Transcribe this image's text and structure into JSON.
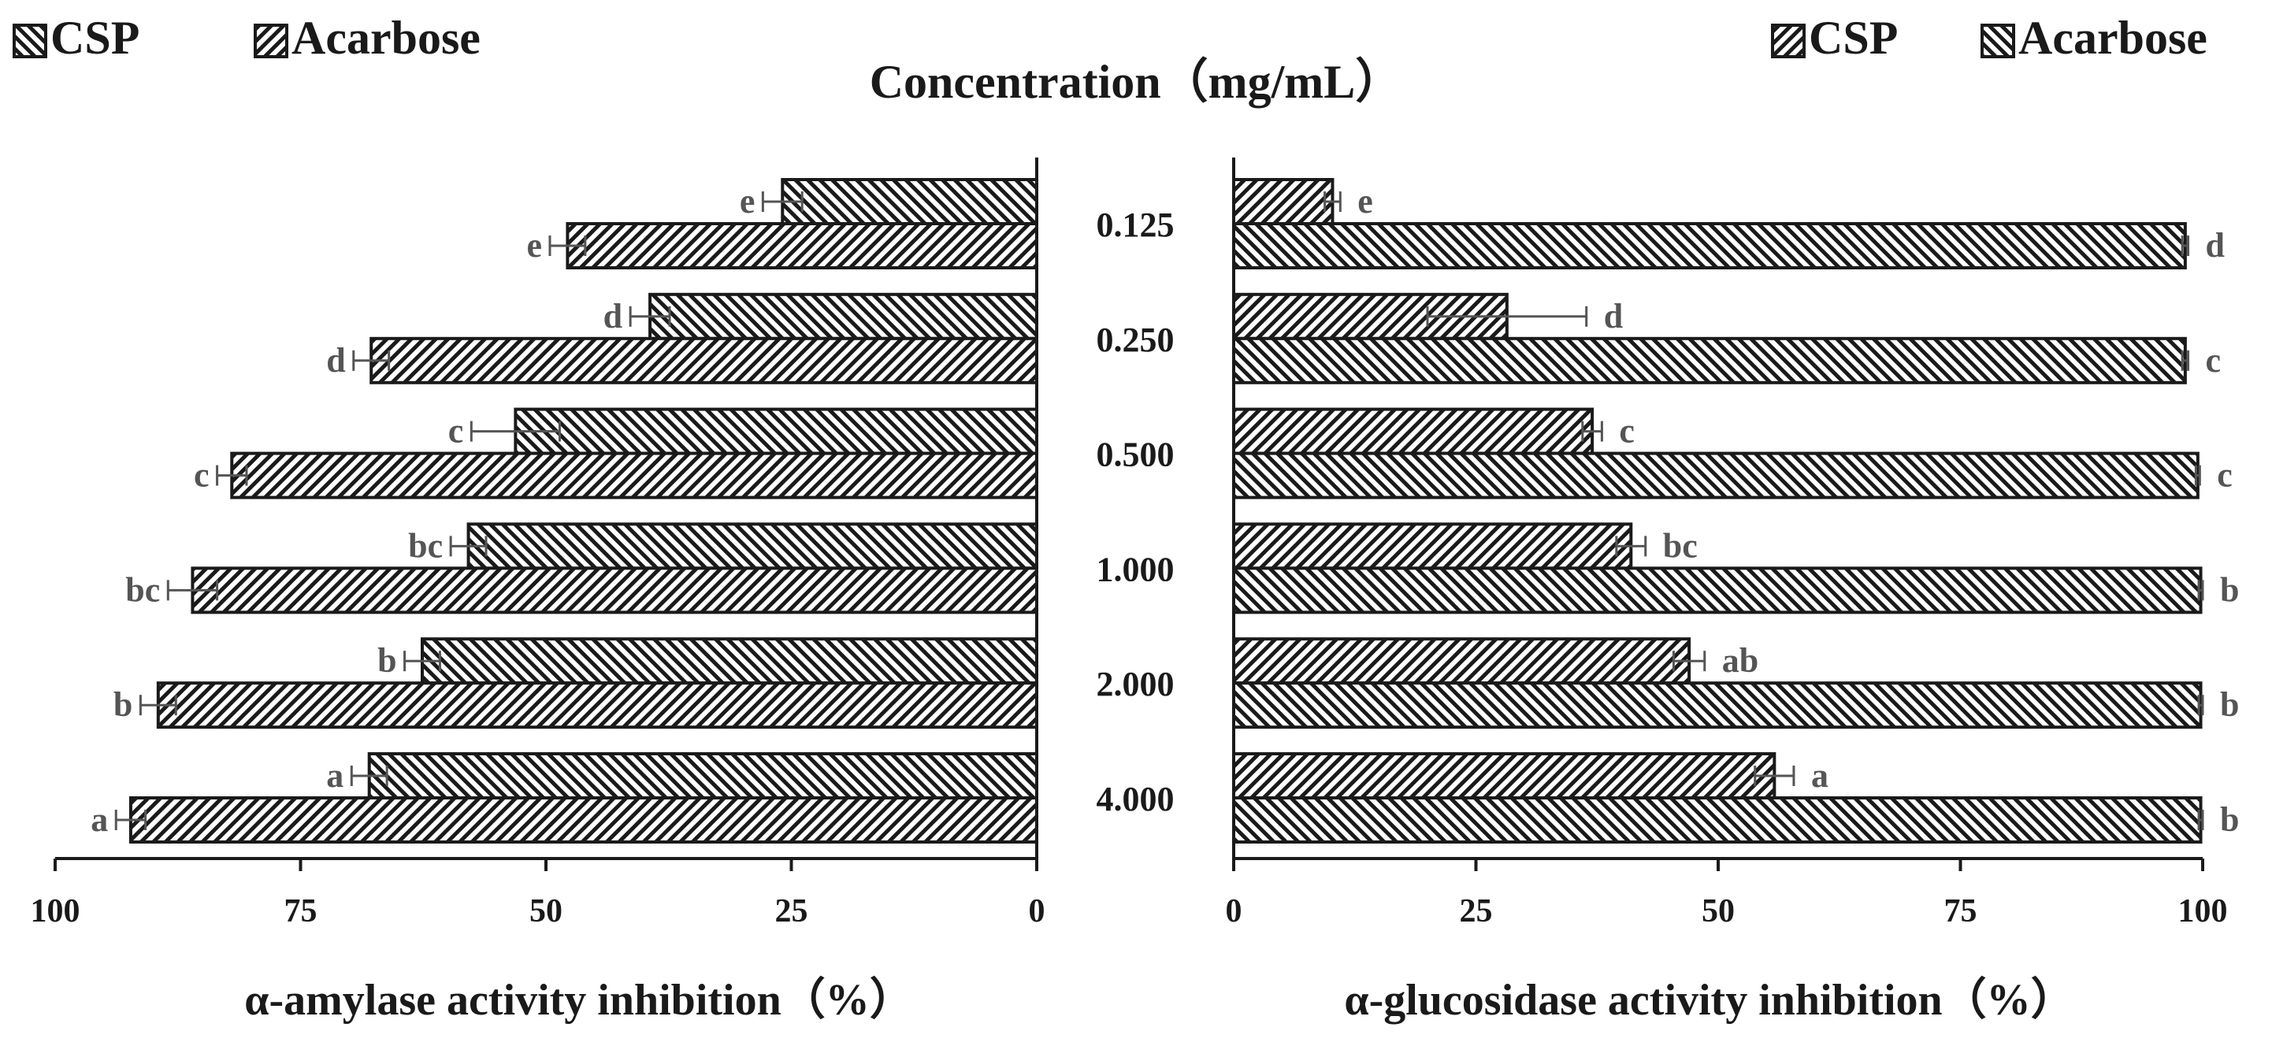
{
  "chart_data": {
    "type": "bar",
    "title": "Concentration（mg/mL）",
    "categories": [
      "0.125",
      "0.250",
      "0.500",
      "1.000",
      "2.000",
      "4.000"
    ],
    "ticks": [
      "0",
      "25",
      "50",
      "75",
      "100"
    ],
    "panels": [
      {
        "name": "alpha-amylase",
        "xlabel": "α-amylase activity inhibition（%）",
        "xlim": [
          0,
          100
        ],
        "reversed": true,
        "legend": [
          {
            "name": "CSP",
            "pattern": "backslash"
          },
          {
            "name": "Acarbose",
            "pattern": "slash"
          }
        ],
        "series": [
          {
            "name": "CSP",
            "pattern": "backslash",
            "values": [
              25.9,
              39.4,
              53.1,
              57.9,
              62.6,
              68.0
            ],
            "errors": [
              2.0,
              2.0,
              4.5,
              1.8,
              1.8,
              1.8
            ],
            "letters": [
              "e",
              "d",
              "c",
              "bc",
              "b",
              "a"
            ]
          },
          {
            "name": "Acarbose",
            "pattern": "slash",
            "values": [
              47.8,
              67.8,
              82.0,
              86.0,
              89.5,
              92.3
            ],
            "errors": [
              1.8,
              1.8,
              1.5,
              2.5,
              1.8,
              1.5
            ],
            "letters": [
              "e",
              "d",
              "c",
              "bc",
              "b",
              "a"
            ]
          }
        ]
      },
      {
        "name": "alpha-glucosidase",
        "xlabel": "α-glucosidase activity inhibition（%）",
        "xlim": [
          0,
          100
        ],
        "reversed": false,
        "legend": [
          {
            "name": "CSP",
            "pattern": "slash"
          },
          {
            "name": "Acarbose",
            "pattern": "backslash"
          }
        ],
        "series": [
          {
            "name": "CSP",
            "pattern": "slash",
            "values": [
              10.2,
              28.2,
              37.0,
              41.0,
              47.0,
              55.8
            ],
            "errors": [
              0.8,
              8.2,
              1.0,
              1.5,
              1.6,
              2.0
            ],
            "letters": [
              "e",
              "d",
              "c",
              "bc",
              "ab",
              "a"
            ]
          },
          {
            "name": "Acarbose",
            "pattern": "backslash",
            "values": [
              98.2,
              98.2,
              99.5,
              99.8,
              99.8,
              99.8
            ],
            "errors": [
              0.3,
              0.3,
              0.2,
              0.2,
              0.2,
              0.2
            ],
            "letters": [
              "d",
              "c",
              "c",
              "b",
              "b",
              "b"
            ]
          }
        ]
      }
    ]
  }
}
